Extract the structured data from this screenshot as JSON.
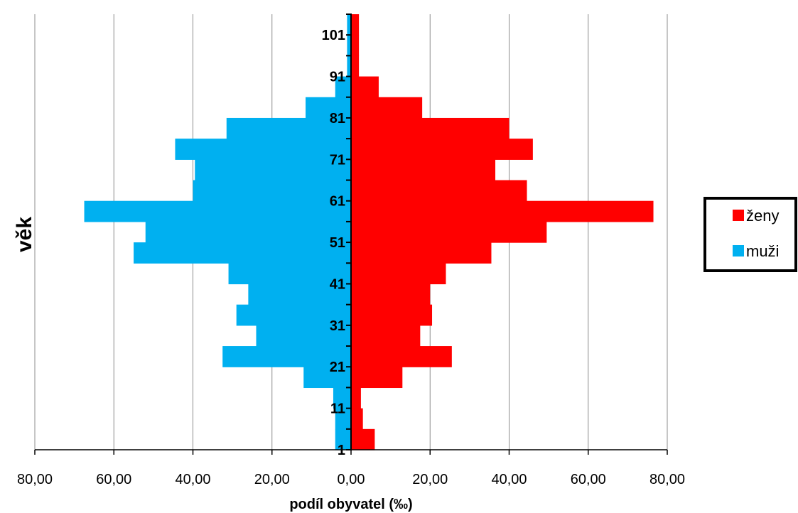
{
  "chart_data": {
    "type": "bar",
    "orientation": "horizontal-pyramid",
    "title": "",
    "xlabel": "podíl obyvatel (‰)",
    "ylabel": "věk",
    "xlim": [
      -80,
      80
    ],
    "x_ticks": [
      -80,
      -60,
      -40,
      -20,
      0,
      20,
      40,
      60,
      80
    ],
    "x_tick_labels": [
      "80,00",
      "60,00",
      "40,00",
      "20,00",
      "0,00",
      "20,00",
      "40,00",
      "60,00",
      "80,00"
    ],
    "y_tick_labels": [
      "1",
      "11",
      "21",
      "31",
      "41",
      "51",
      "61",
      "71",
      "81",
      "91",
      "101"
    ],
    "grid": "vertical",
    "legend_position": "right",
    "categories": [
      "1",
      "6",
      "11",
      "16",
      "21",
      "26",
      "31",
      "36",
      "41",
      "46",
      "51",
      "56",
      "61",
      "66",
      "71",
      "76",
      "81",
      "86",
      "91",
      "96",
      "101"
    ],
    "series": [
      {
        "name": "ženy",
        "color": "#ff0000",
        "side": "right",
        "values": [
          6,
          3,
          2.5,
          13,
          25.5,
          17.5,
          20.5,
          20,
          24,
          35.5,
          49.5,
          76.5,
          44.5,
          36.5,
          46,
          40,
          18,
          7,
          2,
          2,
          2
        ]
      },
      {
        "name": "muži",
        "color": "#00b0f0",
        "side": "left",
        "values": [
          4,
          4,
          4.5,
          12,
          32.5,
          24,
          29,
          26,
          31,
          55,
          52,
          67.5,
          40,
          39.5,
          44.5,
          31.5,
          11.5,
          4,
          1,
          1,
          1
        ]
      }
    ]
  }
}
